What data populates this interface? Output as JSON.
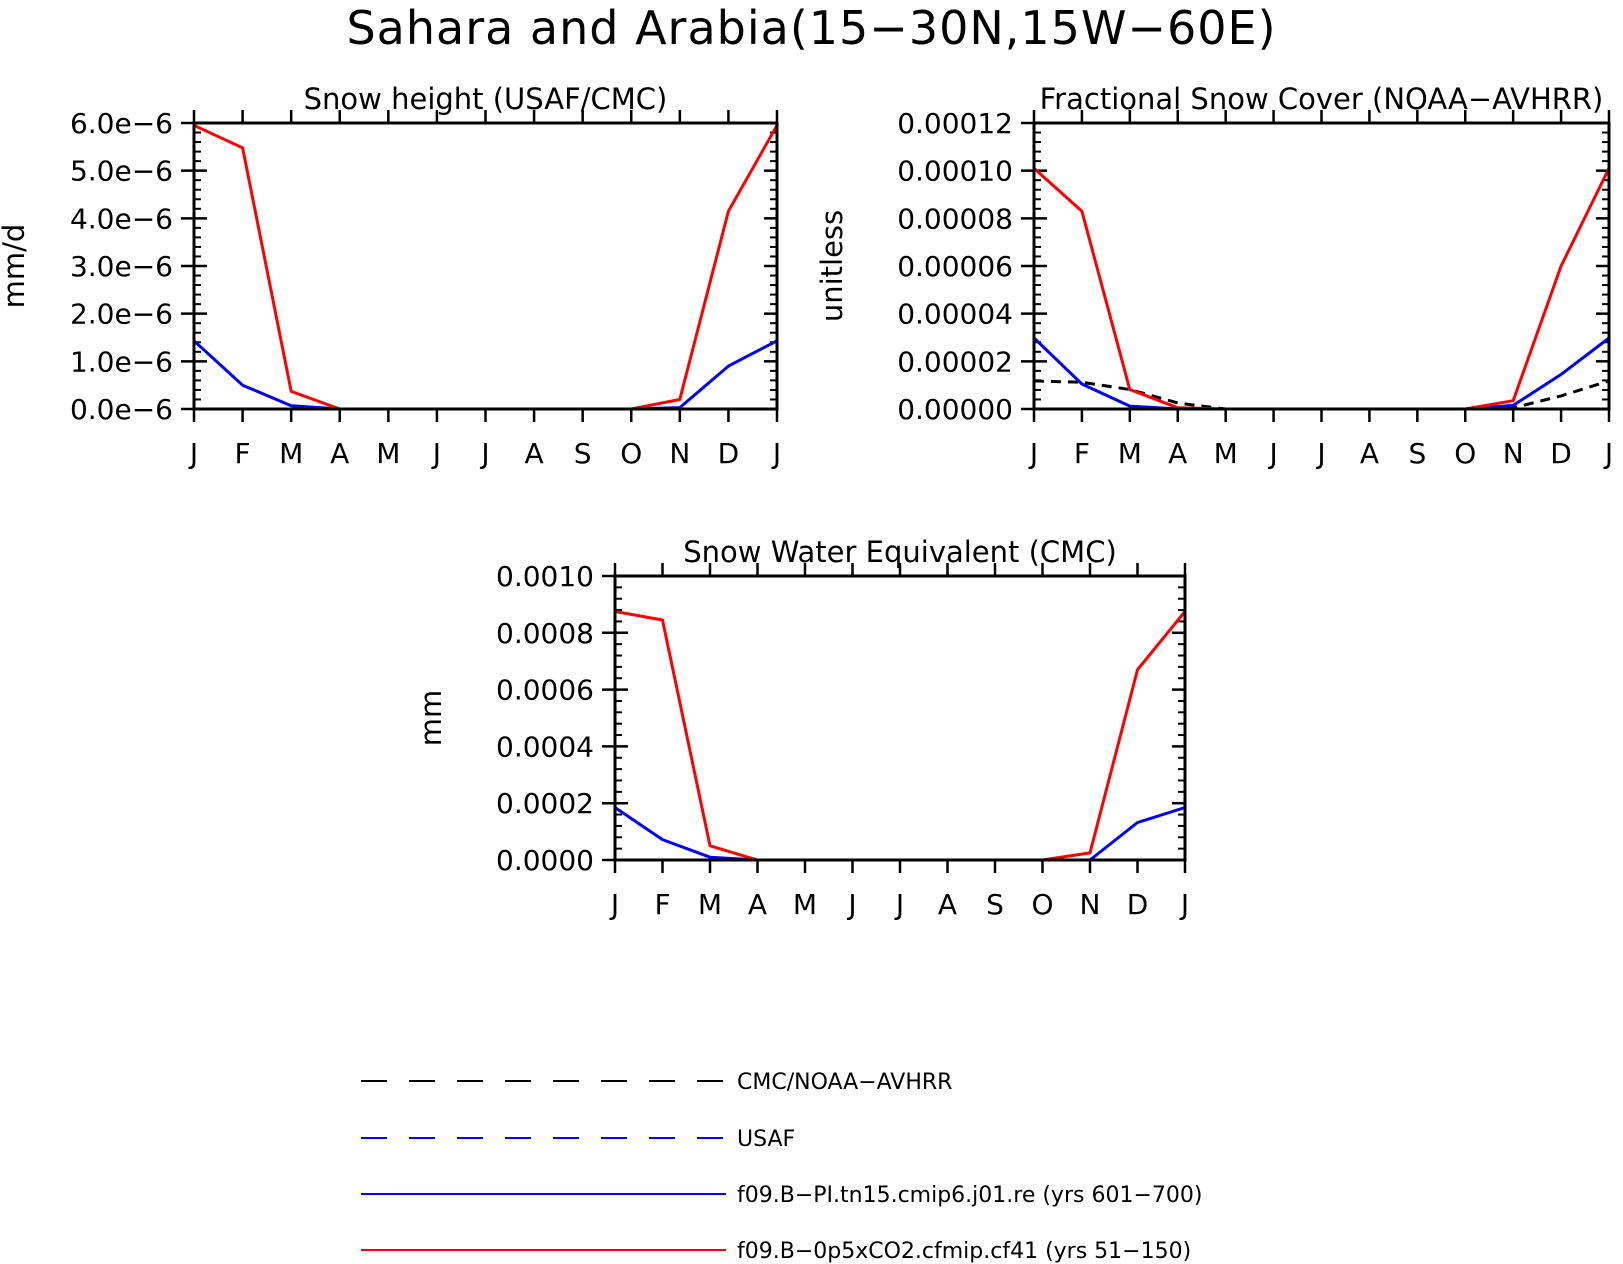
{
  "figure_title": "Sahara and Arabia(15−30N,15W−60E)",
  "chart_data": [
    {
      "type": "line",
      "title": "Snow height (USAF/CMC)",
      "ylabel": "mm/d",
      "xlabel": "",
      "categories": [
        "J",
        "F",
        "M",
        "A",
        "M",
        "J",
        "J",
        "A",
        "S",
        "O",
        "N",
        "D",
        "J"
      ],
      "ylim": [
        0,
        6e-06
      ],
      "yticks": [
        0,
        1e-06,
        2e-06,
        3e-06,
        4e-06,
        5e-06,
        6e-06
      ],
      "ytick_labels": [
        "0.0e−6",
        "1.0e−6",
        "2.0e−6",
        "3.0e−6",
        "4.0e−6",
        "5.0e−6",
        "6.0e−6"
      ],
      "series": [
        {
          "key": "usaf",
          "color": "#0000ff",
          "dash": "",
          "values": [
            0,
            0,
            0,
            0,
            0,
            0,
            0,
            0,
            0,
            0,
            0,
            0,
            0
          ]
        },
        {
          "key": "pi",
          "color": "#0000ff",
          "dash": "",
          "values": [
            1.43e-06,
            5e-07,
            7e-08,
            0,
            0,
            0,
            0,
            0,
            0,
            0,
            3e-08,
            9e-07,
            1.43e-06
          ]
        },
        {
          "key": "co2",
          "color": "#ff0000",
          "dash": "",
          "values": [
            5.95e-06,
            5.48e-06,
            3.7e-07,
            0,
            0,
            0,
            0,
            0,
            0,
            0,
            2e-07,
            4.15e-06,
            5.95e-06
          ]
        }
      ]
    },
    {
      "type": "line",
      "title": "Fractional Snow Cover (NOAA−AVHRR)",
      "ylabel": "unitless",
      "xlabel": "",
      "categories": [
        "J",
        "F",
        "M",
        "A",
        "M",
        "J",
        "J",
        "A",
        "S",
        "O",
        "N",
        "D",
        "J"
      ],
      "ylim": [
        0,
        0.00012
      ],
      "yticks": [
        0,
        2e-05,
        4e-05,
        6e-05,
        8e-05,
        0.0001,
        0.00012
      ],
      "ytick_labels": [
        "0.00000",
        "0.00002",
        "0.00004",
        "0.00006",
        "0.00008",
        "0.00010",
        "0.00012"
      ],
      "series": [
        {
          "key": "obs",
          "color": "#000000",
          "dash": "10,7",
          "values": [
            1.18e-05,
            1.12e-05,
            8.2e-06,
            2.5e-06,
            0,
            0,
            0,
            0,
            0,
            0,
            5e-07,
            5.5e-06,
            1.18e-05
          ]
        },
        {
          "key": "pi",
          "color": "#0000ff",
          "dash": "",
          "values": [
            2.98e-05,
            1.05e-05,
            1.2e-06,
            0,
            0,
            0,
            0,
            0,
            0,
            0,
            1.5e-06,
            1.45e-05,
            2.98e-05
          ]
        },
        {
          "key": "co2",
          "color": "#ff0000",
          "dash": "",
          "values": [
            0.000101,
            8.3e-05,
            8.2e-06,
            5e-07,
            0,
            0,
            0,
            0,
            0,
            0,
            3.5e-06,
            6e-05,
            0.000101
          ]
        }
      ]
    },
    {
      "type": "line",
      "title": "Snow Water Equivalent (CMC)",
      "ylabel": "mm",
      "xlabel": "",
      "categories": [
        "J",
        "F",
        "M",
        "A",
        "M",
        "J",
        "J",
        "A",
        "S",
        "O",
        "N",
        "D",
        "J"
      ],
      "ylim": [
        0,
        0.001
      ],
      "yticks": [
        0,
        0.0002,
        0.0004,
        0.0006,
        0.0008,
        0.001
      ],
      "ytick_labels": [
        "0.0000",
        "0.0002",
        "0.0004",
        "0.0006",
        "0.0008",
        "0.0010"
      ],
      "series": [
        {
          "key": "obs",
          "color": "#000000",
          "dash": "",
          "values": [
            0,
            0,
            0,
            0,
            0,
            0,
            0,
            0,
            0,
            0,
            0,
            0,
            0
          ]
        },
        {
          "key": "pi",
          "color": "#0000ff",
          "dash": "",
          "values": [
            0.000185,
            7.2e-05,
            1e-05,
            0,
            0,
            0,
            0,
            0,
            0,
            0,
            0,
            0.000132,
            0.000185
          ]
        },
        {
          "key": "co2",
          "color": "#ff0000",
          "dash": "",
          "values": [
            0.000875,
            0.000845,
            5e-05,
            0,
            0,
            0,
            0,
            0,
            0,
            0,
            2.5e-05,
            0.00067,
            0.000875
          ]
        }
      ]
    }
  ],
  "legend": {
    "placement": "bottom-center",
    "entries": [
      {
        "label": "CMC/NOAA−AVHRR",
        "color": "#000000",
        "style": "dashed"
      },
      {
        "label": "USAF",
        "color": "#0000ff",
        "style": "dashed"
      },
      {
        "label": "f09.B−PI.tn15.cmip6.j01.re (yrs 601−700)",
        "color": "#0000ff",
        "style": "solid"
      },
      {
        "label": "f09.B−0p5xCO2.cfmip.cf41 (yrs 51−150)",
        "color": "#ff0000",
        "style": "solid"
      }
    ]
  }
}
